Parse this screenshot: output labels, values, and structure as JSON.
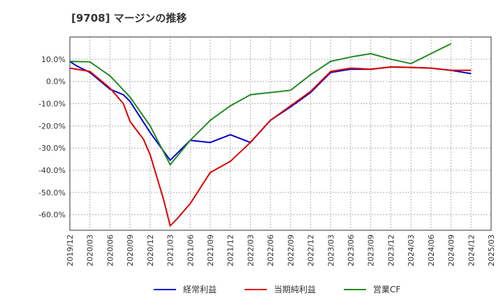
{
  "chart_data": {
    "type": "line",
    "title": "[9708]  マージンの推移",
    "xlabel": "",
    "ylabel": "",
    "ylim": [
      -67,
      20
    ],
    "yticks": [
      10,
      0,
      -10,
      -20,
      -30,
      -40,
      -50,
      -60
    ],
    "ytick_labels": [
      "10.0%",
      "0.0%",
      "-10.0%",
      "-20.0%",
      "-30.0%",
      "-40.0%",
      "-50.0%",
      "-60.0%"
    ],
    "grid": true,
    "legend_position": "bottom",
    "x_ticks": [
      "2019/12",
      "2020/03",
      "2020/06",
      "2020/09",
      "2020/12",
      "2021/03",
      "2021/06",
      "2021/09",
      "2021/12",
      "2022/03",
      "2022/06",
      "2022/09",
      "2022/12",
      "2023/03",
      "2023/06",
      "2023/09",
      "2023/12",
      "2024/03",
      "2024/06",
      "2024/09",
      "2024/12",
      "2025/03"
    ],
    "x": [
      "2019/12",
      "2020/03",
      "2020/06",
      "2020/09",
      "2020/12",
      "2021/03",
      "2021/06",
      "2021/09",
      "2021/12",
      "2022/03",
      "2022/06",
      "2022/09",
      "2022/12",
      "2023/03",
      "2023/06",
      "2023/09",
      "2023/12",
      "2024/03",
      "2024/06",
      "2024/09",
      "2024/12"
    ],
    "series": [
      {
        "name": "経常利益",
        "color": "#0000cc",
        "points": [
          [
            "2019/12",
            9
          ],
          [
            "2020/01",
            7
          ],
          [
            "2020/03",
            4
          ],
          [
            "2020/06",
            -3.5
          ],
          [
            "2020/08",
            -6
          ],
          [
            "2020/09",
            -9
          ],
          [
            "2020/12",
            -23
          ],
          [
            "2021/03",
            -35.5
          ],
          [
            "2021/06",
            -26.5
          ],
          [
            "2021/09",
            -27.5
          ],
          [
            "2021/12",
            -24
          ],
          [
            "2022/03",
            -27.5
          ],
          [
            "2022/06",
            -17.5
          ],
          [
            "2022/09",
            -11.5
          ],
          [
            "2022/12",
            -5
          ],
          [
            "2023/03",
            4
          ],
          [
            "2023/06",
            5.5
          ],
          [
            "2023/09",
            5.5
          ],
          [
            "2023/12",
            6.5
          ],
          [
            "2024/03",
            6.3
          ],
          [
            "2024/06",
            6
          ],
          [
            "2024/09",
            5
          ],
          [
            "2024/12",
            3.5
          ]
        ]
      },
      {
        "name": "当期純利益",
        "color": "#dd0000",
        "points": [
          [
            "2019/12",
            6
          ],
          [
            "2020/03",
            4.5
          ],
          [
            "2020/06",
            -3
          ],
          [
            "2020/08",
            -10
          ],
          [
            "2020/09",
            -18
          ],
          [
            "2020/11",
            -26
          ],
          [
            "2020/12",
            -33
          ],
          [
            "2021/02",
            -53
          ],
          [
            "2021/03",
            -65
          ],
          [
            "2021/04",
            -62
          ],
          [
            "2021/05",
            -58.5
          ],
          [
            "2021/06",
            -55
          ],
          [
            "2021/09",
            -41
          ],
          [
            "2021/12",
            -36
          ],
          [
            "2022/03",
            -27.5
          ],
          [
            "2022/06",
            -17.5
          ],
          [
            "2022/09",
            -11
          ],
          [
            "2022/12",
            -4.5
          ],
          [
            "2023/03",
            4.5
          ],
          [
            "2023/06",
            6
          ],
          [
            "2023/09",
            5.5
          ],
          [
            "2023/12",
            6.5
          ],
          [
            "2024/03",
            6.3
          ],
          [
            "2024/06",
            6
          ],
          [
            "2024/09",
            5
          ],
          [
            "2024/12",
            5
          ]
        ]
      },
      {
        "name": "営業CF",
        "color": "#228b22",
        "points": [
          [
            "2019/12",
            9
          ],
          [
            "2020/03",
            8.8
          ],
          [
            "2020/06",
            2.5
          ],
          [
            "2020/09",
            -7
          ],
          [
            "2020/12",
            -20
          ],
          [
            "2021/03",
            -37.5
          ],
          [
            "2021/06",
            -26.5
          ],
          [
            "2021/09",
            -17.5
          ],
          [
            "2021/12",
            -11
          ],
          [
            "2022/03",
            -6
          ],
          [
            "2022/06",
            -5
          ],
          [
            "2022/09",
            -4
          ],
          [
            "2022/12",
            3
          ],
          [
            "2023/03",
            9
          ],
          [
            "2023/06",
            11
          ],
          [
            "2023/09",
            12.5
          ],
          [
            "2023/12",
            10
          ],
          [
            "2024/03",
            8
          ],
          [
            "2024/06",
            12.5
          ],
          [
            "2024/09",
            17
          ]
        ]
      }
    ]
  }
}
